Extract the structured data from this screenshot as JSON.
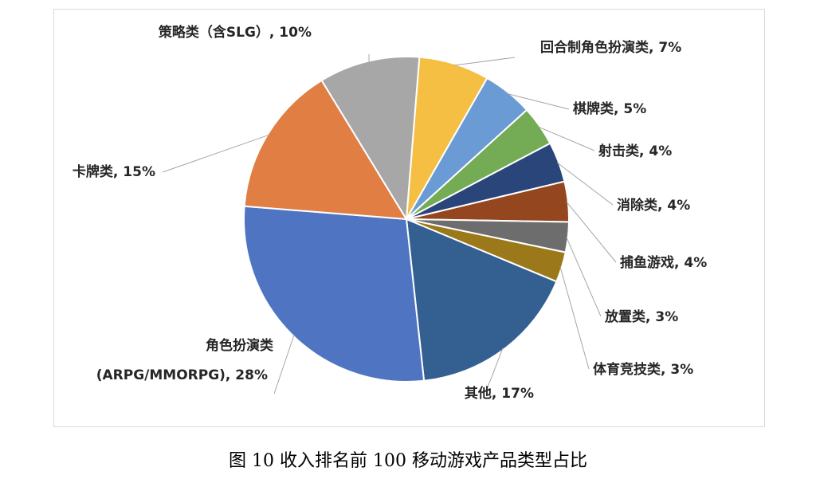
{
  "figure_caption": "图 10  收入排名前 100 移动游戏产品类型占比",
  "chart_data": {
    "type": "pie",
    "slices": [
      {
        "label": "其他, 17%",
        "value": 17,
        "color": "#335f91"
      },
      {
        "label": "角色扮演类",
        "label2": "(ARPG/MMORPG), 28%",
        "value": 28,
        "color": "#4f75c2"
      },
      {
        "label": "卡牌类, 15%",
        "value": 15,
        "color": "#e07e44"
      },
      {
        "label": "策略类（含SLG）, 10%",
        "value": 10,
        "color": "#a7a7a7"
      },
      {
        "label": "回合制角色扮演类, 7%",
        "value": 7,
        "color": "#f4bf43"
      },
      {
        "label": "棋牌类, 5%",
        "value": 5,
        "color": "#6a9bd4"
      },
      {
        "label": "射击类, 4%",
        "value": 4,
        "color": "#74ab55"
      },
      {
        "label": "消除类, 4%",
        "value": 4,
        "color": "#294579"
      },
      {
        "label": "捕鱼游戏, 4%",
        "value": 4,
        "color": "#94461f"
      },
      {
        "label": "放置类, 3%",
        "value": 3,
        "color": "#6d6d6d"
      },
      {
        "label": "体育竞技类, 3%",
        "value": 3,
        "color": "#9b7819"
      }
    ]
  }
}
